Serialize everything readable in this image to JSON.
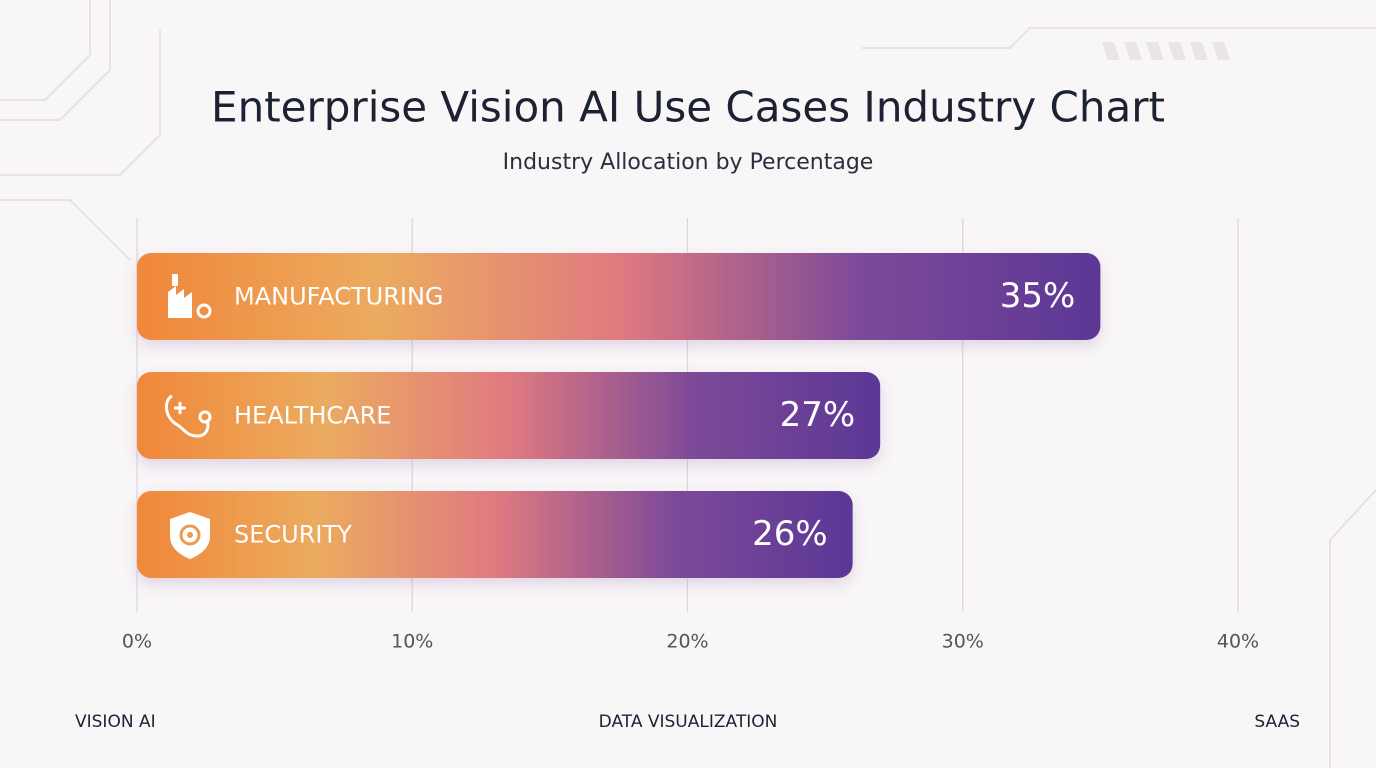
{
  "chart_data": {
    "type": "hbar",
    "title": "Enterprise Vision AI Use Cases Industry Chart",
    "subtitle": "Industry Allocation by Percentage",
    "categories": [
      "MANUFACTURING",
      "HEALTHCARE",
      "SECURITY"
    ],
    "values": [
      35,
      27,
      26
    ],
    "value_labels": [
      "35%",
      "27%",
      "26%"
    ],
    "colors": [
      "#f0873a",
      "#ecab5f",
      "#e07a80",
      "#7d4a99",
      "#5c3796"
    ],
    "xlim": [
      0,
      40
    ],
    "xticks": [
      {
        "value": 0,
        "label": "0%"
      },
      {
        "value": 10,
        "label": "10%"
      },
      {
        "value": 20,
        "label": "20%"
      },
      {
        "value": 30,
        "label": "30%"
      },
      {
        "value": 40,
        "label": "40%"
      }
    ],
    "grid": true
  },
  "footer": [
    "VISION AI",
    "DATA VISUALIZATION",
    "SAAS"
  ]
}
